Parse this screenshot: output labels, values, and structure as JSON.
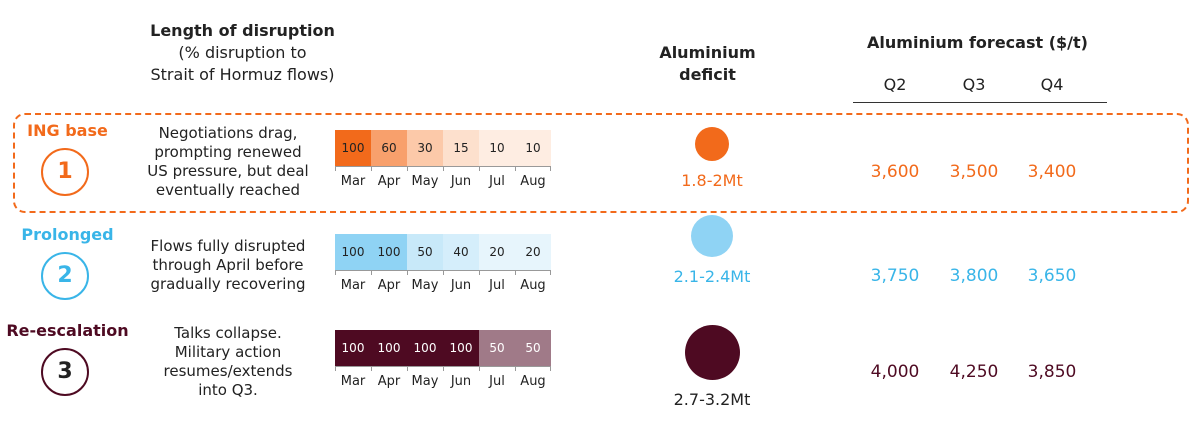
{
  "header": {
    "length_title": "Length of disruption",
    "length_sub1": "(% disruption to",
    "length_sub2": "Strait of Hormuz flows)",
    "deficit_title1": "Aluminium",
    "deficit_title2": "deficit",
    "forecast_title": "Aluminium forecast ($/t)",
    "quarters": [
      "Q2",
      "Q3",
      "Q4"
    ]
  },
  "colors": {
    "base": "#f26a1b",
    "prolonged": "#39b5e8",
    "reescalation": "#4e0a22"
  },
  "chart_data": {
    "type": "heatmap",
    "months": [
      "Mar",
      "Apr",
      "May",
      "Jun",
      "Jul",
      "Aug"
    ],
    "quarters": [
      "Q2",
      "Q3",
      "Q4"
    ],
    "scenarios": [
      {
        "name": "ING base",
        "number": "1",
        "description": [
          "Negotiations drag,",
          "prompting renewed",
          "US pressure, but deal",
          "eventually reached"
        ],
        "disruption": [
          100,
          60,
          30,
          15,
          10,
          10
        ],
        "disruption_labels": [
          "100",
          "60",
          "30",
          "15",
          "10",
          "10"
        ],
        "cell_colors": [
          "#f26a1b",
          "#f8a06c",
          "#fcc9a9",
          "#fde0cd",
          "#feede2",
          "#feede2"
        ],
        "cell_text_colors": [
          "#222",
          "#222",
          "#222",
          "#222",
          "#222",
          "#222"
        ],
        "deficit": "1.8-2Mt",
        "deficit_size": 1,
        "forecast": [
          "3,600",
          "3,500",
          "3,400"
        ]
      },
      {
        "name": "Prolonged",
        "number": "2",
        "description": [
          "Flows fully disrupted",
          "through April before",
          "gradually recovering"
        ],
        "disruption": [
          100,
          100,
          50,
          40,
          20,
          20
        ],
        "disruption_labels": [
          "100",
          "100",
          "50",
          "40",
          "20",
          "20"
        ],
        "cell_colors": [
          "#8fd3f4",
          "#8fd3f4",
          "#c8e9f9",
          "#d5eefb",
          "#e7f5fc",
          "#e7f5fc"
        ],
        "cell_text_colors": [
          "#222",
          "#222",
          "#222",
          "#222",
          "#222",
          "#222"
        ],
        "deficit": "2.1-2.4Mt",
        "deficit_size": 1.5,
        "forecast": [
          "3,750",
          "3,800",
          "3,650"
        ]
      },
      {
        "name": "Re-escalation",
        "number": "3",
        "description": [
          "Talks collapse.",
          "Military action",
          "resumes/extends",
          "into Q3."
        ],
        "disruption": [
          100,
          100,
          100,
          100,
          50,
          50
        ],
        "disruption_labels": [
          "100",
          "100",
          "100",
          "100",
          "50",
          "50"
        ],
        "cell_colors": [
          "#4e0a22",
          "#4e0a22",
          "#4e0a22",
          "#4e0a22",
          "#a07a88",
          "#a07a88"
        ],
        "cell_text_colors": [
          "#fff",
          "#fff",
          "#fff",
          "#fff",
          "#fff",
          "#fff"
        ],
        "deficit": "2.7-3.2Mt",
        "deficit_size": 2.6,
        "forecast": [
          "4,000",
          "4,250",
          "3,850"
        ]
      }
    ]
  }
}
